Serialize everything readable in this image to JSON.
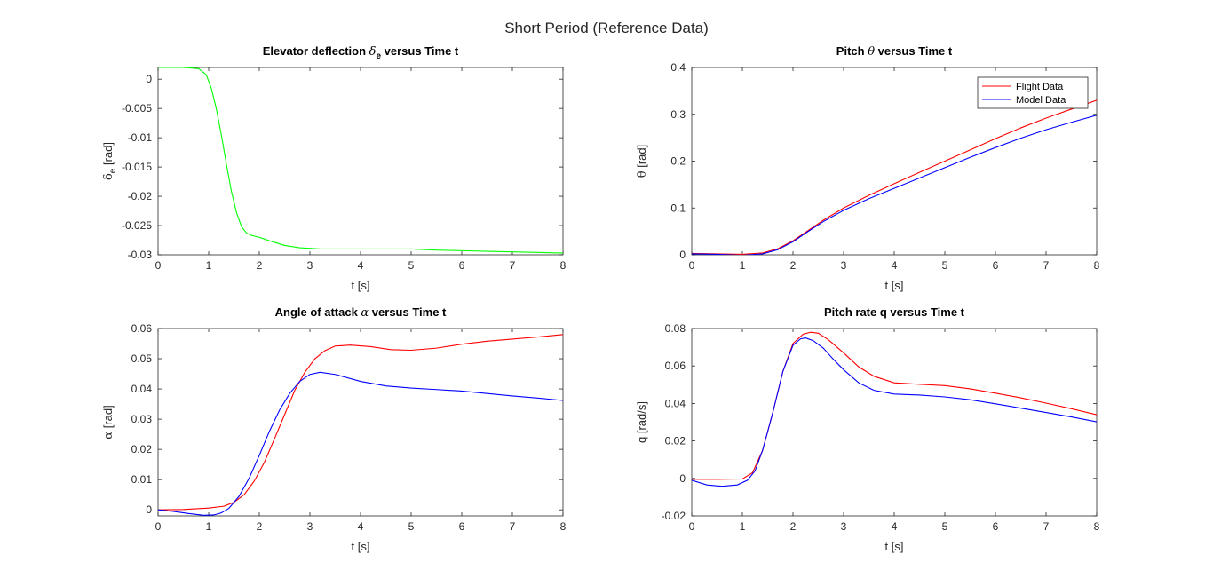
{
  "figure_title": "Short Period (Reference Data)",
  "chart_data": [
    {
      "type": "line",
      "title": "Elevator deflection δe versus Time t",
      "title_parts": {
        "pre": "Elevator deflection ",
        "sym": "δ",
        "sub": "e",
        "post": " versus Time t"
      },
      "xlabel": "t [s]",
      "ylabel": "δe [rad]",
      "ylabel_parts": {
        "sym": "δ",
        "sub": "e",
        "post": " [rad]"
      },
      "xlim": [
        0,
        8
      ],
      "ylim": [
        -0.03,
        0.002
      ],
      "xticks": [
        0,
        1,
        2,
        3,
        4,
        5,
        6,
        7,
        8
      ],
      "yticks": [
        0,
        -0.005,
        -0.01,
        -0.015,
        -0.02,
        -0.025,
        -0.03
      ],
      "ytick_labels": [
        "0",
        "-0.005",
        "-0.01",
        "-0.015",
        "-0.02",
        "-0.025",
        "-0.03"
      ],
      "grid": false,
      "series": [
        {
          "color": "#00ff00",
          "x": [
            0,
            0.5,
            0.8,
            0.95,
            1.05,
            1.15,
            1.25,
            1.35,
            1.45,
            1.55,
            1.65,
            1.75,
            1.85,
            2.0,
            2.2,
            2.5,
            2.8,
            3.2,
            3.6,
            4,
            4.5,
            5,
            5.5,
            6,
            6.5,
            7,
            7.5,
            8
          ],
          "y": [
            0.002,
            0.002,
            0.0018,
            0.0008,
            -0.0015,
            -0.005,
            -0.0095,
            -0.0145,
            -0.0192,
            -0.0228,
            -0.0252,
            -0.0263,
            -0.0267,
            -0.027,
            -0.0276,
            -0.0284,
            -0.0288,
            -0.029,
            -0.029,
            -0.029,
            -0.029,
            -0.029,
            -0.0292,
            -0.0293,
            -0.0294,
            -0.0295,
            -0.0296,
            -0.0297
          ]
        }
      ]
    },
    {
      "type": "line",
      "title": "Pitch θ versus Time t",
      "title_parts": {
        "pre": "Pitch ",
        "sym": "θ",
        "sub": "",
        "post": " versus Time t"
      },
      "xlabel": "t [s]",
      "ylabel": "θ [rad]",
      "ylabel_parts": {
        "sym": "θ",
        "sub": "",
        "post": " [rad]"
      },
      "xlim": [
        0,
        8
      ],
      "ylim": [
        0,
        0.4
      ],
      "xticks": [
        0,
        1,
        2,
        3,
        4,
        5,
        6,
        7,
        8
      ],
      "yticks": [
        0,
        0.1,
        0.2,
        0.3,
        0.4
      ],
      "ytick_labels": [
        "0",
        "0.1",
        "0.2",
        "0.3",
        "0.4"
      ],
      "grid": false,
      "legend": {
        "location": "top-right",
        "entries": [
          "Flight Data",
          "Model Data"
        ]
      },
      "series": [
        {
          "name": "Flight Data",
          "color": "#ff0000",
          "x": [
            0,
            0.5,
            1,
            1.4,
            1.7,
            2,
            2.3,
            2.6,
            3,
            3.5,
            4,
            4.5,
            5,
            5.5,
            6,
            6.5,
            7,
            7.5,
            8
          ],
          "y": [
            0.003,
            0.002,
            0.001,
            0.004,
            0.013,
            0.03,
            0.052,
            0.074,
            0.1,
            0.127,
            0.152,
            0.176,
            0.2,
            0.224,
            0.248,
            0.271,
            0.292,
            0.311,
            0.33
          ]
        },
        {
          "name": "Model Data",
          "color": "#0000ff",
          "x": [
            0,
            0.5,
            1,
            1.4,
            1.7,
            2,
            2.3,
            2.6,
            3,
            3.5,
            4,
            4.5,
            5,
            5.5,
            6,
            6.5,
            7,
            7.5,
            8
          ],
          "y": [
            0.002,
            0.001,
            -0.001,
            0.002,
            0.011,
            0.028,
            0.05,
            0.071,
            0.095,
            0.12,
            0.142,
            0.164,
            0.186,
            0.208,
            0.229,
            0.249,
            0.267,
            0.283,
            0.298
          ]
        }
      ]
    },
    {
      "type": "line",
      "title": "Angle of attack α versus Time t",
      "title_parts": {
        "pre": "Angle of attack ",
        "sym": "α",
        "sub": "",
        "post": " versus Time t"
      },
      "xlabel": "t [s]",
      "ylabel": "α [rad]",
      "ylabel_parts": {
        "sym": "α",
        "sub": "",
        "post": " [rad]"
      },
      "xlim": [
        0,
        8
      ],
      "ylim": [
        -0.002,
        0.06
      ],
      "xticks": [
        0,
        1,
        2,
        3,
        4,
        5,
        6,
        7,
        8
      ],
      "yticks": [
        0,
        0.01,
        0.02,
        0.03,
        0.04,
        0.05,
        0.06
      ],
      "ytick_labels": [
        "0",
        "0.01",
        "0.02",
        "0.03",
        "0.04",
        "0.05",
        "0.06"
      ],
      "grid": false,
      "series": [
        {
          "name": "Flight Data",
          "color": "#ff0000",
          "x": [
            0,
            0.5,
            1,
            1.3,
            1.5,
            1.7,
            1.9,
            2.1,
            2.3,
            2.5,
            2.7,
            2.9,
            3.1,
            3.3,
            3.5,
            3.8,
            4.2,
            4.6,
            5,
            5.5,
            6,
            6.5,
            7,
            7.5,
            8
          ],
          "y": [
            0.0,
            0.0001,
            0.0006,
            0.0012,
            0.0025,
            0.005,
            0.0095,
            0.0157,
            0.0235,
            0.0315,
            0.0395,
            0.0455,
            0.05,
            0.0527,
            0.0542,
            0.0545,
            0.054,
            0.053,
            0.0528,
            0.0535,
            0.0548,
            0.0558,
            0.0565,
            0.0572,
            0.058
          ]
        },
        {
          "name": "Model Data",
          "color": "#0000ff",
          "x": [
            0,
            0.3,
            0.6,
            0.9,
            1.1,
            1.25,
            1.4,
            1.6,
            1.8,
            2.0,
            2.2,
            2.4,
            2.6,
            2.8,
            3.0,
            3.2,
            3.5,
            4,
            4.5,
            5,
            5.5,
            6,
            6.5,
            7,
            7.5,
            8
          ],
          "y": [
            0.0,
            -0.0005,
            -0.0012,
            -0.0018,
            -0.0017,
            -0.001,
            0.0005,
            0.0045,
            0.0105,
            0.018,
            0.026,
            0.033,
            0.0385,
            0.0425,
            0.0448,
            0.0455,
            0.0448,
            0.0425,
            0.041,
            0.0403,
            0.0398,
            0.0393,
            0.0385,
            0.0377,
            0.037,
            0.0362
          ]
        }
      ]
    },
    {
      "type": "line",
      "title": "Pitch rate q versus Time t",
      "title_parts": {
        "pre": "Pitch rate q versus Time t",
        "sym": "",
        "sub": "",
        "post": ""
      },
      "xlabel": "t [s]",
      "ylabel": "q [rad/s]",
      "ylabel_parts": {
        "sym": "",
        "sub": "",
        "post": "q [rad/s]"
      },
      "xlim": [
        0,
        8
      ],
      "ylim": [
        -0.02,
        0.08
      ],
      "xticks": [
        0,
        1,
        2,
        3,
        4,
        5,
        6,
        7,
        8
      ],
      "yticks": [
        -0.02,
        0,
        0.02,
        0.04,
        0.06,
        0.08
      ],
      "ytick_labels": [
        "-0.02",
        "0",
        "0.02",
        "0.04",
        "0.06",
        "0.08"
      ],
      "grid": false,
      "series": [
        {
          "name": "Flight Data",
          "color": "#ff0000",
          "x": [
            0,
            0.5,
            1,
            1.2,
            1.4,
            1.6,
            1.8,
            2.0,
            2.2,
            2.35,
            2.5,
            2.7,
            3.0,
            3.3,
            3.6,
            4,
            4.5,
            5,
            5.5,
            6,
            6.5,
            7,
            7.5,
            8
          ],
          "y": [
            -0.0005,
            -0.0005,
            -0.0003,
            0.003,
            0.015,
            0.035,
            0.057,
            0.072,
            0.077,
            0.078,
            0.0775,
            0.074,
            0.067,
            0.0595,
            0.0545,
            0.051,
            0.0502,
            0.0495,
            0.0478,
            0.0455,
            0.043,
            0.0402,
            0.0372,
            0.034
          ]
        },
        {
          "name": "Model Data",
          "color": "#0000ff",
          "x": [
            0,
            0.3,
            0.6,
            0.9,
            1.1,
            1.25,
            1.4,
            1.6,
            1.8,
            2.0,
            2.15,
            2.25,
            2.4,
            2.6,
            2.8,
            3.0,
            3.3,
            3.6,
            4,
            4.5,
            5,
            5.5,
            6,
            6.5,
            7,
            7.5,
            8
          ],
          "y": [
            -0.001,
            -0.0035,
            -0.0042,
            -0.0035,
            -0.001,
            0.004,
            0.015,
            0.035,
            0.057,
            0.071,
            0.0745,
            0.075,
            0.0735,
            0.0695,
            0.0635,
            0.058,
            0.051,
            0.047,
            0.045,
            0.0445,
            0.0435,
            0.042,
            0.0398,
            0.0375,
            0.0352,
            0.0328,
            0.0302
          ]
        }
      ]
    }
  ]
}
